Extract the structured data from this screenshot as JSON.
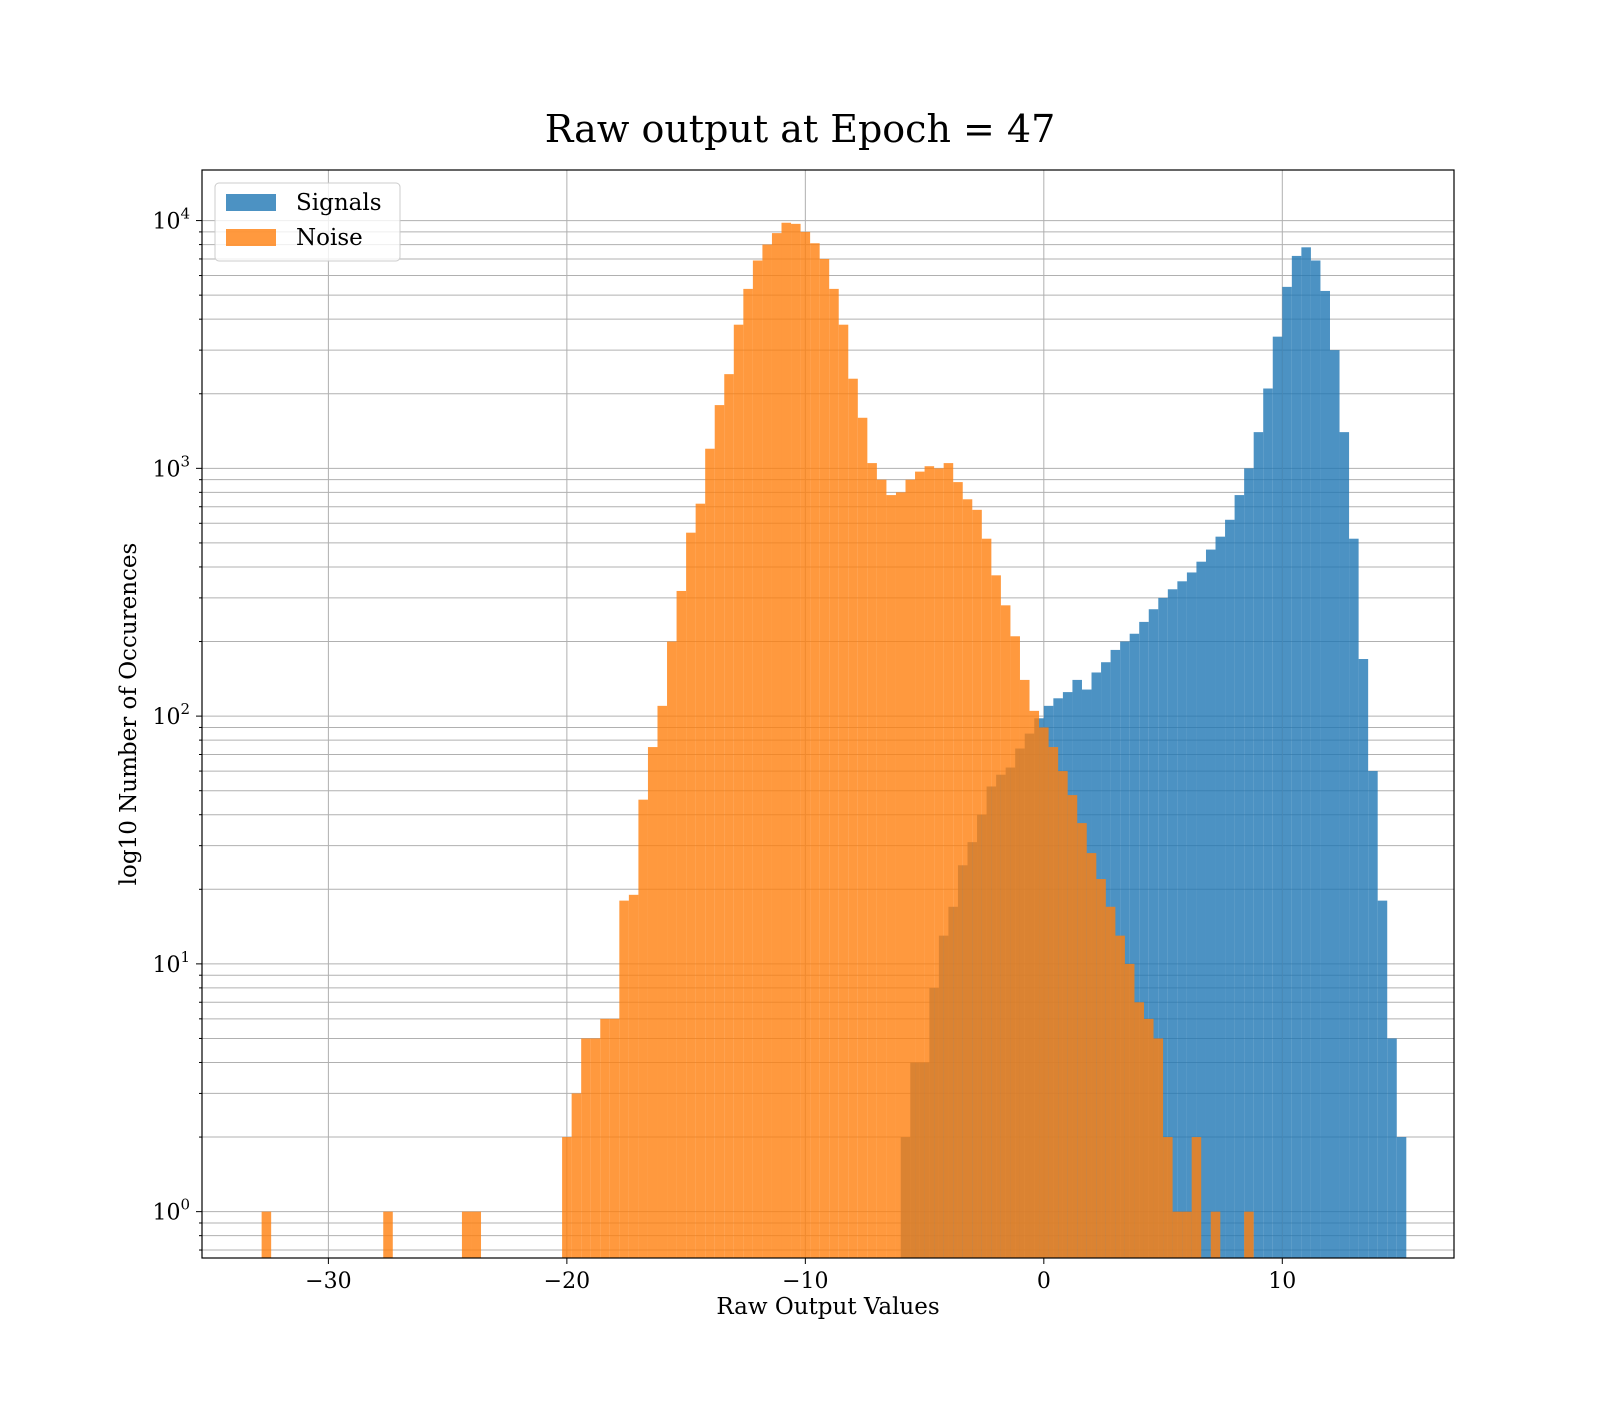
{
  "chart_data": {
    "type": "bar",
    "title": "Raw output at Epoch = 47",
    "xlabel": "Raw Output Values",
    "ylabel": "log10 Number of Occurences",
    "yscale": "log",
    "xlim": [
      -35.3,
      17.2
    ],
    "ylim": [
      0.65,
      16000
    ],
    "grid": true,
    "legend_position": "top-left",
    "x_ticks": [
      {
        "value": -30,
        "label": "−30"
      },
      {
        "value": -20,
        "label": "−20"
      },
      {
        "value": -10,
        "label": "−10"
      },
      {
        "value": 0,
        "label": "0"
      },
      {
        "value": 10,
        "label": "10"
      }
    ],
    "y_ticks": [
      {
        "value": 1,
        "base": "10",
        "exp": "0"
      },
      {
        "value": 10,
        "base": "10",
        "exp": "1"
      },
      {
        "value": 100,
        "base": "10",
        "exp": "2"
      },
      {
        "value": 1000,
        "base": "10",
        "exp": "3"
      },
      {
        "value": 10000,
        "base": "10",
        "exp": "4"
      }
    ],
    "series": [
      {
        "name": "Signals",
        "color": "#1f77b4",
        "bins": [
          {
            "x": -5.8,
            "count": 2
          },
          {
            "x": -5.4,
            "count": 4
          },
          {
            "x": -5.0,
            "count": 4
          },
          {
            "x": -4.6,
            "count": 8
          },
          {
            "x": -4.2,
            "count": 13
          },
          {
            "x": -3.8,
            "count": 17
          },
          {
            "x": -3.4,
            "count": 25
          },
          {
            "x": -3.0,
            "count": 31
          },
          {
            "x": -2.6,
            "count": 40
          },
          {
            "x": -2.2,
            "count": 52
          },
          {
            "x": -1.8,
            "count": 58
          },
          {
            "x": -1.4,
            "count": 62
          },
          {
            "x": -1.0,
            "count": 74
          },
          {
            "x": -0.6,
            "count": 85
          },
          {
            "x": -0.2,
            "count": 98
          },
          {
            "x": 0.2,
            "count": 110
          },
          {
            "x": 0.6,
            "count": 118
          },
          {
            "x": 1.0,
            "count": 125
          },
          {
            "x": 1.4,
            "count": 140
          },
          {
            "x": 1.8,
            "count": 128
          },
          {
            "x": 2.2,
            "count": 150
          },
          {
            "x": 2.6,
            "count": 165
          },
          {
            "x": 3.0,
            "count": 185
          },
          {
            "x": 3.4,
            "count": 200
          },
          {
            "x": 3.8,
            "count": 215
          },
          {
            "x": 4.2,
            "count": 240
          },
          {
            "x": 4.6,
            "count": 270
          },
          {
            "x": 5.0,
            "count": 300
          },
          {
            "x": 5.4,
            "count": 325
          },
          {
            "x": 5.8,
            "count": 350
          },
          {
            "x": 6.2,
            "count": 380
          },
          {
            "x": 6.6,
            "count": 420
          },
          {
            "x": 7.0,
            "count": 470
          },
          {
            "x": 7.4,
            "count": 530
          },
          {
            "x": 7.8,
            "count": 620
          },
          {
            "x": 8.2,
            "count": 780
          },
          {
            "x": 8.6,
            "count": 1000
          },
          {
            "x": 9.0,
            "count": 1400
          },
          {
            "x": 9.4,
            "count": 2100
          },
          {
            "x": 9.8,
            "count": 3400
          },
          {
            "x": 10.2,
            "count": 5400
          },
          {
            "x": 10.6,
            "count": 7200
          },
          {
            "x": 11.0,
            "count": 7800
          },
          {
            "x": 11.4,
            "count": 6900
          },
          {
            "x": 11.8,
            "count": 5200
          },
          {
            "x": 12.2,
            "count": 3000
          },
          {
            "x": 12.6,
            "count": 1400
          },
          {
            "x": 13.0,
            "count": 520
          },
          {
            "x": 13.4,
            "count": 170
          },
          {
            "x": 13.8,
            "count": 60
          },
          {
            "x": 14.2,
            "count": 18
          },
          {
            "x": 14.6,
            "count": 5
          },
          {
            "x": 15.0,
            "count": 2
          }
        ]
      },
      {
        "name": "Noise",
        "color": "#ff7f0e",
        "bins": [
          {
            "x": -32.6,
            "count": 1
          },
          {
            "x": -27.5,
            "count": 1
          },
          {
            "x": -24.2,
            "count": 1
          },
          {
            "x": -23.8,
            "count": 1
          },
          {
            "x": -20.0,
            "count": 2
          },
          {
            "x": -19.6,
            "count": 3
          },
          {
            "x": -19.2,
            "count": 5
          },
          {
            "x": -18.8,
            "count": 5
          },
          {
            "x": -18.4,
            "count": 6
          },
          {
            "x": -18.0,
            "count": 6
          },
          {
            "x": -17.6,
            "count": 18
          },
          {
            "x": -17.2,
            "count": 19
          },
          {
            "x": -16.8,
            "count": 46
          },
          {
            "x": -16.4,
            "count": 75
          },
          {
            "x": -16.0,
            "count": 110
          },
          {
            "x": -15.6,
            "count": 200
          },
          {
            "x": -15.2,
            "count": 320
          },
          {
            "x": -14.8,
            "count": 550
          },
          {
            "x": -14.4,
            "count": 720
          },
          {
            "x": -14.0,
            "count": 1200
          },
          {
            "x": -13.6,
            "count": 1800
          },
          {
            "x": -13.2,
            "count": 2400
          },
          {
            "x": -12.8,
            "count": 3800
          },
          {
            "x": -12.4,
            "count": 5300
          },
          {
            "x": -12.0,
            "count": 6900
          },
          {
            "x": -11.6,
            "count": 8000
          },
          {
            "x": -11.2,
            "count": 8900
          },
          {
            "x": -10.8,
            "count": 9800
          },
          {
            "x": -10.4,
            "count": 9700
          },
          {
            "x": -10.0,
            "count": 9000
          },
          {
            "x": -9.6,
            "count": 8100
          },
          {
            "x": -9.2,
            "count": 7000
          },
          {
            "x": -8.8,
            "count": 5300
          },
          {
            "x": -8.4,
            "count": 3800
          },
          {
            "x": -8.0,
            "count": 2300
          },
          {
            "x": -7.6,
            "count": 1600
          },
          {
            "x": -7.2,
            "count": 1050
          },
          {
            "x": -6.8,
            "count": 900
          },
          {
            "x": -6.4,
            "count": 780
          },
          {
            "x": -6.0,
            "count": 800
          },
          {
            "x": -5.6,
            "count": 900
          },
          {
            "x": -5.2,
            "count": 970
          },
          {
            "x": -4.8,
            "count": 1020
          },
          {
            "x": -4.4,
            "count": 1000
          },
          {
            "x": -4.0,
            "count": 1050
          },
          {
            "x": -3.6,
            "count": 880
          },
          {
            "x": -3.2,
            "count": 750
          },
          {
            "x": -2.8,
            "count": 680
          },
          {
            "x": -2.4,
            "count": 520
          },
          {
            "x": -2.0,
            "count": 370
          },
          {
            "x": -1.6,
            "count": 280
          },
          {
            "x": -1.2,
            "count": 210
          },
          {
            "x": -0.8,
            "count": 140
          },
          {
            "x": -0.4,
            "count": 105
          },
          {
            "x": 0.0,
            "count": 90
          },
          {
            "x": 0.4,
            "count": 75
          },
          {
            "x": 0.8,
            "count": 60
          },
          {
            "x": 1.2,
            "count": 48
          },
          {
            "x": 1.6,
            "count": 37
          },
          {
            "x": 2.0,
            "count": 28
          },
          {
            "x": 2.4,
            "count": 22
          },
          {
            "x": 2.8,
            "count": 17
          },
          {
            "x": 3.2,
            "count": 13
          },
          {
            "x": 3.6,
            "count": 10
          },
          {
            "x": 4.0,
            "count": 7
          },
          {
            "x": 4.4,
            "count": 6
          },
          {
            "x": 4.8,
            "count": 5
          },
          {
            "x": 5.2,
            "count": 2
          },
          {
            "x": 5.6,
            "count": 1
          },
          {
            "x": 6.0,
            "count": 1
          },
          {
            "x": 6.4,
            "count": 2
          },
          {
            "x": 7.2,
            "count": 1
          },
          {
            "x": 8.6,
            "count": 1
          }
        ]
      }
    ]
  }
}
